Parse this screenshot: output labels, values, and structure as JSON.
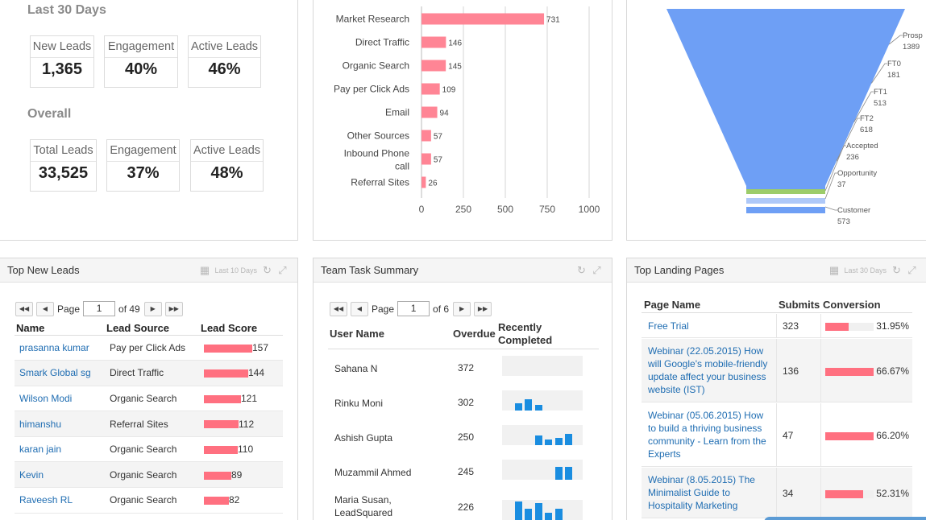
{
  "kpis": {
    "last30": {
      "title": "Last 30 Days",
      "items": [
        {
          "label": "New Leads",
          "value": "1,365"
        },
        {
          "label": "Engagement",
          "value": "40%"
        },
        {
          "label": "Active Leads",
          "value": "46%"
        }
      ]
    },
    "overall": {
      "title": "Overall",
      "items": [
        {
          "label": "Total Leads",
          "value": "33,525"
        },
        {
          "label": "Engagement",
          "value": "37%"
        },
        {
          "label": "Active Leads",
          "value": "48%"
        }
      ]
    }
  },
  "chart_data": [
    {
      "type": "bar",
      "orientation": "horizontal",
      "categories": [
        "Market Research",
        "Direct Traffic",
        "Organic Search",
        "Pay per Click Ads",
        "Email",
        "Other Sources",
        "Inbound Phone call",
        "Referral Sites"
      ],
      "values": [
        731,
        146,
        145,
        109,
        94,
        57,
        57,
        26
      ],
      "xlim": [
        0,
        1000
      ],
      "xticks": [
        "0",
        "250",
        "500",
        "750",
        "1000"
      ],
      "grid": true,
      "color": "#ff8595"
    },
    {
      "type": "funnel",
      "stages": [
        {
          "name": "Prospect",
          "label": "Prosp",
          "value": "1389",
          "color": "#6e9ff5"
        },
        {
          "name": "FT0",
          "label": "FT0",
          "value": "181",
          "color": "#6e9ff5"
        },
        {
          "name": "FT1",
          "label": "FT1",
          "value": "513",
          "color": "#6e9ff5"
        },
        {
          "name": "FT2",
          "label": "FT2",
          "value": "618",
          "color": "#6e9ff5"
        },
        {
          "name": "Accepted",
          "label": "Accepted",
          "value": "236",
          "color": "#9ccc6a"
        },
        {
          "name": "Opportunity",
          "label": "Opportunity",
          "value": "37",
          "color": "#aec8f8"
        },
        {
          "name": "Customer",
          "label": "Customer",
          "value": "573",
          "color": "#6e9ff5"
        }
      ]
    }
  ],
  "top_new_leads": {
    "title": "Top New Leads",
    "range": "Last 10 Days",
    "pager": {
      "page_label": "Page",
      "page": "1",
      "of_label": "of 49"
    },
    "columns": [
      "Name",
      "Lead Source",
      "Lead Score"
    ],
    "max_score": 160,
    "rows": [
      {
        "name": "prasanna kumar",
        "source": "Pay per Click Ads",
        "score": 157,
        "score_text": "157"
      },
      {
        "name": "Smark Global sg",
        "source": "Direct Traffic",
        "score": 144,
        "score_text": "144"
      },
      {
        "name": "Wilson Modi",
        "source": "Organic Search",
        "score": 121,
        "score_text": "121"
      },
      {
        "name": "himanshu",
        "source": "Referral Sites",
        "score": 112,
        "score_text": "112"
      },
      {
        "name": "karan jain",
        "source": "Organic Search",
        "score": 110,
        "score_text": "110"
      },
      {
        "name": "Kevin",
        "source": "Organic Search",
        "score": 89,
        "score_text": "89"
      },
      {
        "name": "Raveesh RL",
        "source": "Organic Search",
        "score": 82,
        "score_text": "82"
      }
    ]
  },
  "team_task_summary": {
    "title": "Team Task Summary",
    "pager": {
      "page_label": "Page",
      "page": "1",
      "of_label": "of 6"
    },
    "columns": [
      "User Name",
      "Overdue",
      "Recently Completed"
    ],
    "rows": [
      {
        "name": "Sahana N",
        "overdue": "372",
        "bars": []
      },
      {
        "name": "Rinku Moni",
        "overdue": "302",
        "bars": [
          0,
          0.4,
          0.6,
          0.3
        ]
      },
      {
        "name": "Ashish Gupta",
        "overdue": "250",
        "bars": [
          0,
          0,
          0,
          0.5,
          0.3,
          0.4,
          0.6,
          0,
          0,
          0,
          0,
          0.4
        ]
      },
      {
        "name": "Muzammil Ahmed",
        "overdue": "245",
        "bars": [
          0,
          0,
          0,
          0,
          0,
          0.7,
          0.7
        ]
      },
      {
        "name": "Maria Susan, LeadSquared",
        "overdue": "226",
        "bars": [
          0,
          1.0,
          0.6,
          0.9,
          0.4,
          0.6
        ]
      }
    ]
  },
  "top_landing_pages": {
    "title": "Top Landing Pages",
    "range": "Last 30 Days",
    "columns": [
      "Page Name",
      "Submits",
      "Conversion"
    ],
    "rows": [
      {
        "name": "Free Trial",
        "submits": "323",
        "conversion": 31.95,
        "conversion_text": "31.95%"
      },
      {
        "name": "Webinar (22.05.2015) How will Google's mobile-friendly update affect your business website (IST)",
        "submits": "136",
        "conversion": 66.67,
        "conversion_text": "66.67%"
      },
      {
        "name": "Webinar (05.06.2015) How to build a thriving business community - Learn from the Experts",
        "submits": "47",
        "conversion": 66.2,
        "conversion_text": "66.20%"
      },
      {
        "name": "Webinar (8.05.2015) The Minimalist Guide to Hospitality Marketing",
        "submits": "34",
        "conversion": 52.31,
        "conversion_text": "52.31%"
      }
    ]
  }
}
